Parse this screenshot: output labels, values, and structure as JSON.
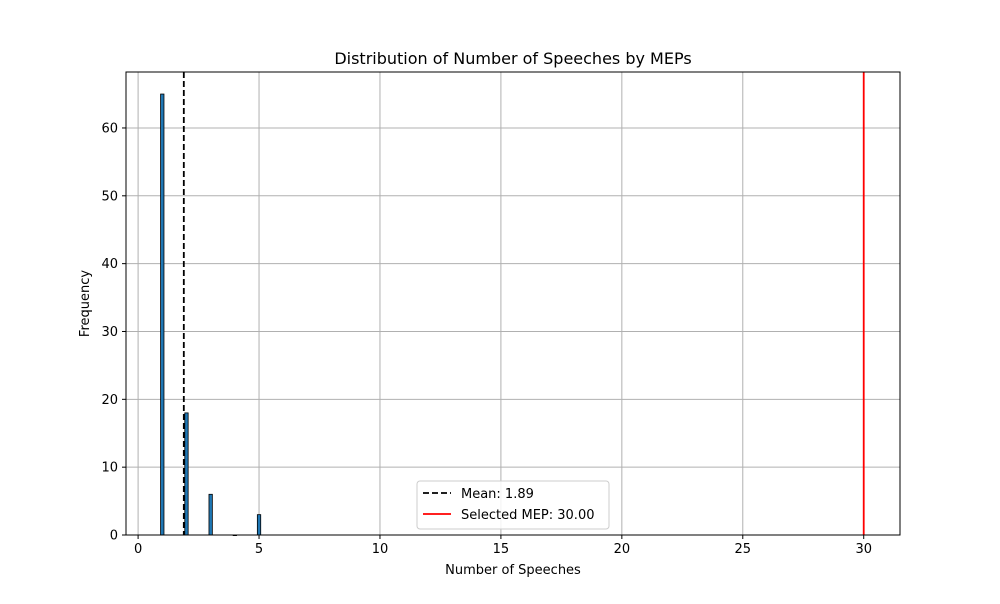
{
  "chart_data": {
    "type": "bar",
    "title": "Distribution of Number of Speeches by MEPs",
    "xlabel": "Number of Speeches",
    "ylabel": "Frequency",
    "xlim": [
      -0.5,
      31.5
    ],
    "ylim": [
      0,
      68.25
    ],
    "xticks": [
      0,
      5,
      10,
      15,
      20,
      25,
      30
    ],
    "yticks": [
      0,
      10,
      20,
      30,
      40,
      50,
      60
    ],
    "grid": true,
    "bar_color": "#1f77b4",
    "bars": [
      {
        "x": 1,
        "value": 65
      },
      {
        "x": 2,
        "value": 18
      },
      {
        "x": 3,
        "value": 6
      },
      {
        "x": 4,
        "value": 0
      },
      {
        "x": 5,
        "value": 3
      }
    ],
    "reference_lines": [
      {
        "label": "Mean: 1.89",
        "x": 1.89,
        "color": "#000000",
        "style": "dashed"
      },
      {
        "label": "Selected MEP: 30.00",
        "x": 30.0,
        "color": "#ff0000",
        "style": "solid"
      }
    ],
    "legend_position": "lower center"
  }
}
